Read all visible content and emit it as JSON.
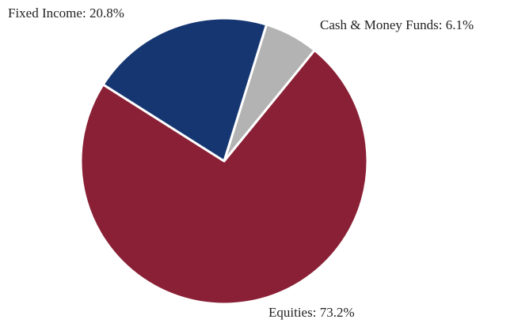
{
  "chart_data": {
    "type": "pie",
    "categories": [
      "Cash & Money Funds",
      "Equities",
      "Fixed Income"
    ],
    "values": [
      6.1,
      73.2,
      20.8
    ],
    "value_labels": [
      "6.1%",
      "73.2%",
      "20.8%"
    ],
    "colors": [
      "#b3b3b3",
      "#8a2035",
      "#163672"
    ]
  }
}
